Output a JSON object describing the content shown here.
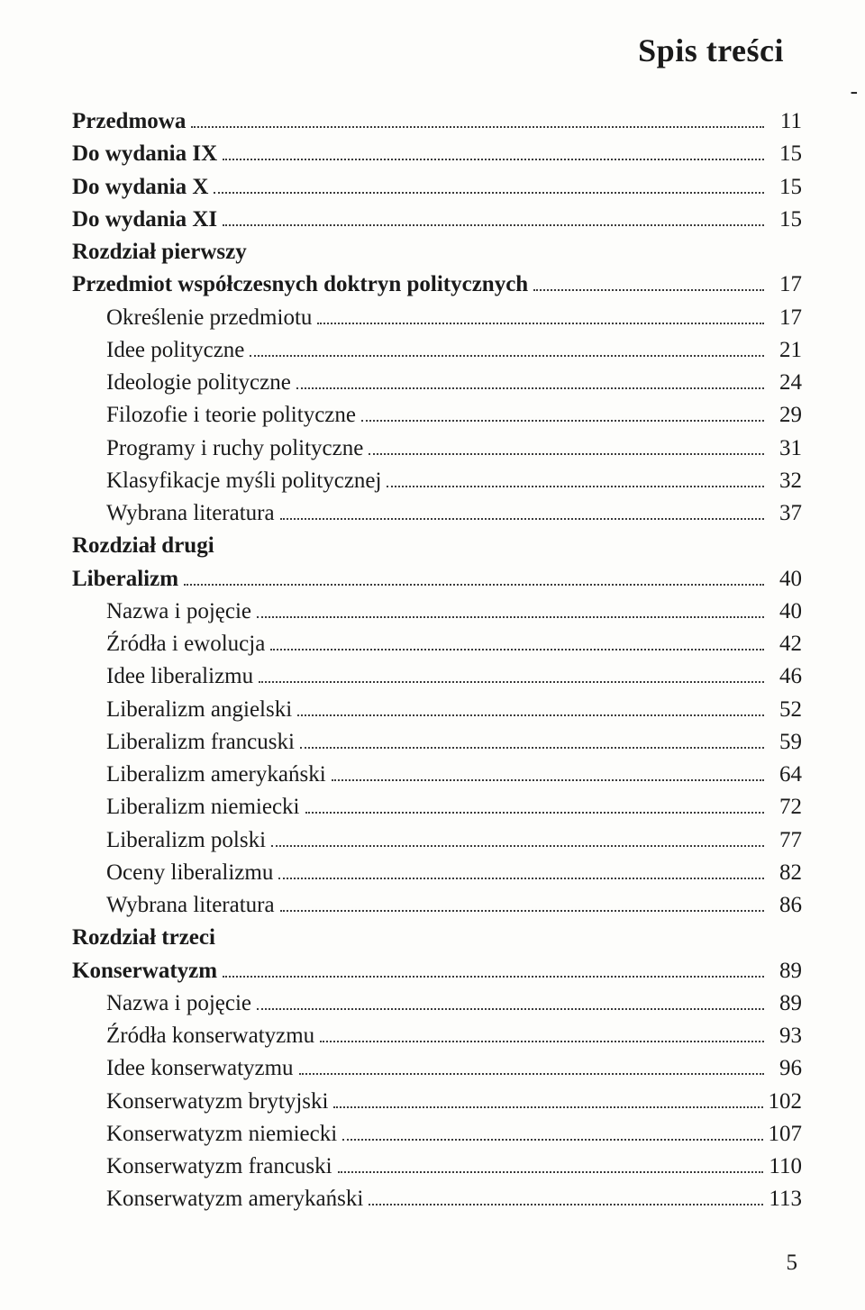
{
  "title": "Spis treści",
  "page_number": "5",
  "side_dash": "-",
  "colors": {
    "background": "#fdfdfb",
    "text": "#1a1a1a",
    "dots": "#3a3a3a"
  },
  "entries": [
    {
      "label": "Przedmowa",
      "page": "11",
      "bold": true,
      "indent": false,
      "has_dots": true
    },
    {
      "label": "Do wydania IX",
      "page": "15",
      "bold": true,
      "indent": false,
      "has_dots": true
    },
    {
      "label": "Do wydania X",
      "page": "15",
      "bold": true,
      "indent": false,
      "has_dots": true
    },
    {
      "label": "Do wydania XI",
      "page": "15",
      "bold": true,
      "indent": false,
      "has_dots": true
    },
    {
      "label": "Rozdział pierwszy",
      "page": "",
      "bold": true,
      "indent": false,
      "has_dots": false
    },
    {
      "label": "Przedmiot współczesnych doktryn politycznych",
      "page": "17",
      "bold": true,
      "indent": false,
      "has_dots": true
    },
    {
      "label": "Określenie przedmiotu",
      "page": "17",
      "bold": false,
      "indent": true,
      "has_dots": true
    },
    {
      "label": "Idee polityczne",
      "page": "21",
      "bold": false,
      "indent": true,
      "has_dots": true
    },
    {
      "label": "Ideologie polityczne",
      "page": "24",
      "bold": false,
      "indent": true,
      "has_dots": true
    },
    {
      "label": "Filozofie i teorie polityczne",
      "page": "29",
      "bold": false,
      "indent": true,
      "has_dots": true
    },
    {
      "label": "Programy i ruchy polityczne",
      "page": "31",
      "bold": false,
      "indent": true,
      "has_dots": true
    },
    {
      "label": "Klasyfikacje myśli politycznej",
      "page": "32",
      "bold": false,
      "indent": true,
      "has_dots": true
    },
    {
      "label": "Wybrana literatura",
      "page": "37",
      "bold": false,
      "indent": true,
      "has_dots": true
    },
    {
      "label": "Rozdział drugi",
      "page": "",
      "bold": true,
      "indent": false,
      "has_dots": false
    },
    {
      "label": "Liberalizm",
      "page": "40",
      "bold": true,
      "indent": false,
      "has_dots": true
    },
    {
      "label": "Nazwa i pojęcie",
      "page": "40",
      "bold": false,
      "indent": true,
      "has_dots": true
    },
    {
      "label": "Źródła i ewolucja",
      "page": "42",
      "bold": false,
      "indent": true,
      "has_dots": true
    },
    {
      "label": "Idee liberalizmu",
      "page": "46",
      "bold": false,
      "indent": true,
      "has_dots": true
    },
    {
      "label": "Liberalizm angielski",
      "page": "52",
      "bold": false,
      "indent": true,
      "has_dots": true
    },
    {
      "label": "Liberalizm francuski",
      "page": "59",
      "bold": false,
      "indent": true,
      "has_dots": true
    },
    {
      "label": "Liberalizm amerykański",
      "page": "64",
      "bold": false,
      "indent": true,
      "has_dots": true
    },
    {
      "label": "Liberalizm niemiecki",
      "page": "72",
      "bold": false,
      "indent": true,
      "has_dots": true
    },
    {
      "label": "Liberalizm polski",
      "page": "77",
      "bold": false,
      "indent": true,
      "has_dots": true
    },
    {
      "label": "Oceny liberalizmu",
      "page": "82",
      "bold": false,
      "indent": true,
      "has_dots": true
    },
    {
      "label": "Wybrana literatura",
      "page": "86",
      "bold": false,
      "indent": true,
      "has_dots": true
    },
    {
      "label": "Rozdział trzeci",
      "page": "",
      "bold": true,
      "indent": false,
      "has_dots": false
    },
    {
      "label": "Konserwatyzm",
      "page": "89",
      "bold": true,
      "indent": false,
      "has_dots": true
    },
    {
      "label": "Nazwa i pojęcie",
      "page": "89",
      "bold": false,
      "indent": true,
      "has_dots": true
    },
    {
      "label": "Źródła konserwatyzmu",
      "page": "93",
      "bold": false,
      "indent": true,
      "has_dots": true
    },
    {
      "label": "Idee konserwatyzmu",
      "page": "96",
      "bold": false,
      "indent": true,
      "has_dots": true
    },
    {
      "label": "Konserwatyzm brytyjski",
      "page": "102",
      "bold": false,
      "indent": true,
      "has_dots": true
    },
    {
      "label": "Konserwatyzm niemiecki",
      "page": "107",
      "bold": false,
      "indent": true,
      "has_dots": true
    },
    {
      "label": "Konserwatyzm francuski",
      "page": "110",
      "bold": false,
      "indent": true,
      "has_dots": true
    },
    {
      "label": "Konserwatyzm amerykański",
      "page": "113",
      "bold": false,
      "indent": true,
      "has_dots": true
    }
  ]
}
